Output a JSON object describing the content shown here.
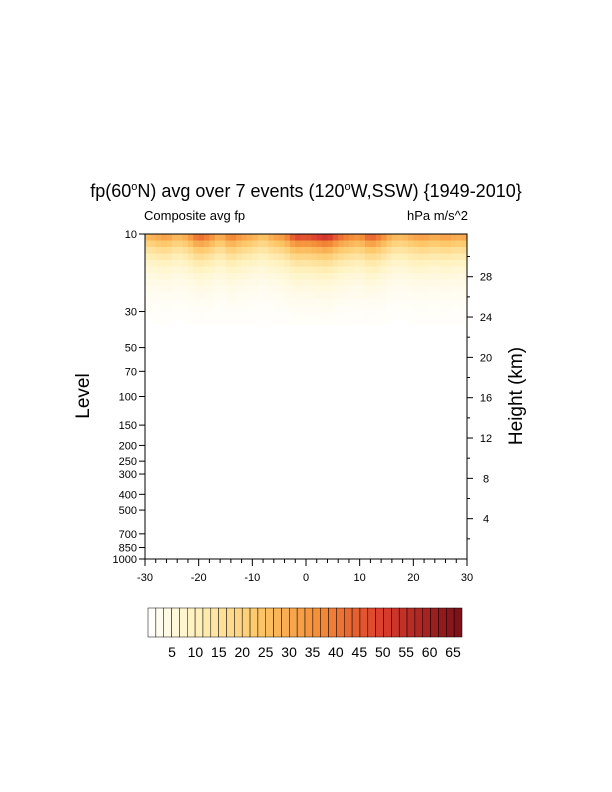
{
  "chart_data": {
    "type": "heatmap",
    "title_parts": {
      "pre": "fp(60",
      "deg1": "o",
      "mid": "N) avg over 7 events (120",
      "deg2": "o",
      "post": "W,SSW) {1949-2010}"
    },
    "left_string": "Composite avg fp",
    "right_string": "hPa m/s^2",
    "ylabel": "Level",
    "ylabel_right": "Height (km)",
    "x_ticks": [
      "-30",
      "-20",
      "-10",
      "0",
      "10",
      "20",
      "30"
    ],
    "xlim": [
      -30,
      30
    ],
    "y_scale": "log",
    "ylim": [
      1000,
      10
    ],
    "y_ticks": [
      "10",
      "30",
      "50",
      "70",
      "100",
      "150",
      "200",
      "250",
      "300",
      "400",
      "500",
      "700",
      "850",
      "1000"
    ],
    "y_right_ticks": [
      "4",
      "8",
      "12",
      "16",
      "20",
      "24",
      "28"
    ],
    "colorbar_labels": [
      "5",
      "10",
      "15",
      "20",
      "25",
      "30",
      "35",
      "40",
      "45",
      "50",
      "55",
      "60",
      "65"
    ],
    "colorbar_levels": 40,
    "color_low": "#ffffff",
    "color_high": "#7a0f17",
    "peak_profile": {
      "x": [
        -30,
        -28,
        -26,
        -24,
        -22,
        -20,
        -18,
        -16,
        -14,
        -12,
        -10,
        -8,
        -6,
        -4,
        -2,
        0,
        2,
        4,
        6,
        8,
        10,
        12,
        14,
        16,
        18,
        20,
        22,
        24,
        26,
        28,
        30
      ],
      "value": [
        30,
        34,
        38,
        30,
        36,
        50,
        44,
        32,
        46,
        38,
        34,
        28,
        36,
        40,
        56,
        54,
        58,
        62,
        50,
        44,
        40,
        52,
        44,
        32,
        30,
        36,
        38,
        34,
        38,
        34,
        36
      ]
    }
  }
}
